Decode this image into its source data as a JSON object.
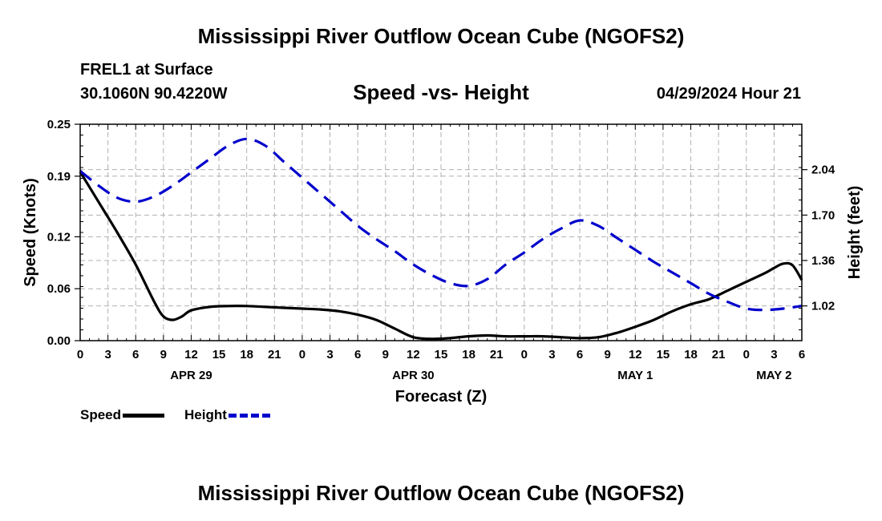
{
  "page": {
    "main_title": "Mississippi River Outflow Ocean Cube (NGOFS2)",
    "station": "FREL1 at Surface",
    "coords": "30.1060N  90.4220W",
    "chart_title": "Speed -vs- Height",
    "datetime": "04/29/2024 Hour 21",
    "bottom_title": "Mississippi River Outflow Ocean Cube (NGOFS2)"
  },
  "legend": {
    "speed_label": "Speed",
    "height_label": "Height"
  },
  "chart_data": {
    "type": "line",
    "title": "Speed -vs- Height",
    "xlabel": "Forecast (Z)",
    "ylabel": "Speed (Knots)",
    "y2label": "Height (feet)",
    "grid": true,
    "xlim": [
      0,
      78
    ],
    "ylim": [
      0,
      0.25
    ],
    "y2lim": [
      0.76,
      2.38
    ],
    "x_ticks": [
      0,
      3,
      6,
      9,
      12,
      15,
      18,
      21,
      24,
      27,
      30,
      33,
      36,
      39,
      42,
      45,
      48,
      51,
      54,
      57,
      60,
      63,
      66,
      69,
      72,
      75,
      78
    ],
    "x_tick_labels": [
      "0",
      "3",
      "6",
      "9",
      "12",
      "15",
      "18",
      "21",
      "0",
      "3",
      "6",
      "9",
      "12",
      "15",
      "18",
      "21",
      "0",
      "3",
      "6",
      "9",
      "12",
      "15",
      "18",
      "21",
      "0",
      "3",
      "6"
    ],
    "date_labels": [
      {
        "label": "APR 29",
        "x": 12
      },
      {
        "label": "APR 30",
        "x": 36
      },
      {
        "label": "MAY 1",
        "x": 60
      },
      {
        "label": "MAY 2",
        "x": 75
      }
    ],
    "y_ticks": [
      0.0,
      0.06,
      0.12,
      0.19,
      0.25
    ],
    "y_tick_labels": [
      "0.00",
      "0.06",
      "0.12",
      "0.19",
      "0.25"
    ],
    "y2_ticks": [
      1.02,
      1.36,
      1.7,
      2.04
    ],
    "y2_tick_labels": [
      "1.02",
      "1.36",
      "1.70",
      "2.04"
    ],
    "series": [
      {
        "name": "Speed",
        "axis": "left",
        "color": "#000000",
        "style": "solid",
        "x": [
          0,
          2,
          4,
          6,
          8,
          9,
          10,
          11,
          12,
          14,
          16,
          18,
          20,
          22,
          24,
          26,
          28,
          30,
          32,
          34,
          36,
          38,
          40,
          42,
          44,
          46,
          48,
          50,
          52,
          54,
          56,
          58,
          60,
          62,
          64,
          66,
          68,
          70,
          72,
          74,
          75,
          76,
          77,
          78
        ],
        "values": [
          0.195,
          0.16,
          0.125,
          0.088,
          0.045,
          0.028,
          0.024,
          0.028,
          0.035,
          0.039,
          0.04,
          0.04,
          0.039,
          0.038,
          0.037,
          0.036,
          0.034,
          0.03,
          0.024,
          0.014,
          0.004,
          0.002,
          0.003,
          0.005,
          0.006,
          0.005,
          0.005,
          0.005,
          0.004,
          0.003,
          0.004,
          0.009,
          0.016,
          0.024,
          0.034,
          0.042,
          0.048,
          0.058,
          0.068,
          0.078,
          0.084,
          0.089,
          0.087,
          0.07
        ]
      },
      {
        "name": "Height",
        "axis": "right",
        "color": "#0000cc",
        "style": "dashed",
        "x": [
          0,
          2,
          4,
          6,
          8,
          10,
          12,
          14,
          16,
          18,
          20,
          22,
          24,
          26,
          28,
          30,
          32,
          34,
          36,
          38,
          40,
          42,
          44,
          46,
          48,
          50,
          52,
          54,
          56,
          58,
          60,
          62,
          64,
          66,
          68,
          70,
          72,
          74,
          76,
          78
        ],
        "values": [
          2.03,
          1.92,
          1.83,
          1.8,
          1.84,
          1.92,
          2.02,
          2.12,
          2.22,
          2.27,
          2.22,
          2.1,
          1.98,
          1.86,
          1.74,
          1.62,
          1.52,
          1.43,
          1.33,
          1.25,
          1.19,
          1.17,
          1.22,
          1.33,
          1.42,
          1.52,
          1.6,
          1.66,
          1.62,
          1.53,
          1.44,
          1.35,
          1.27,
          1.19,
          1.11,
          1.05,
          1.0,
          0.99,
          1.0,
          1.02
        ]
      }
    ]
  }
}
